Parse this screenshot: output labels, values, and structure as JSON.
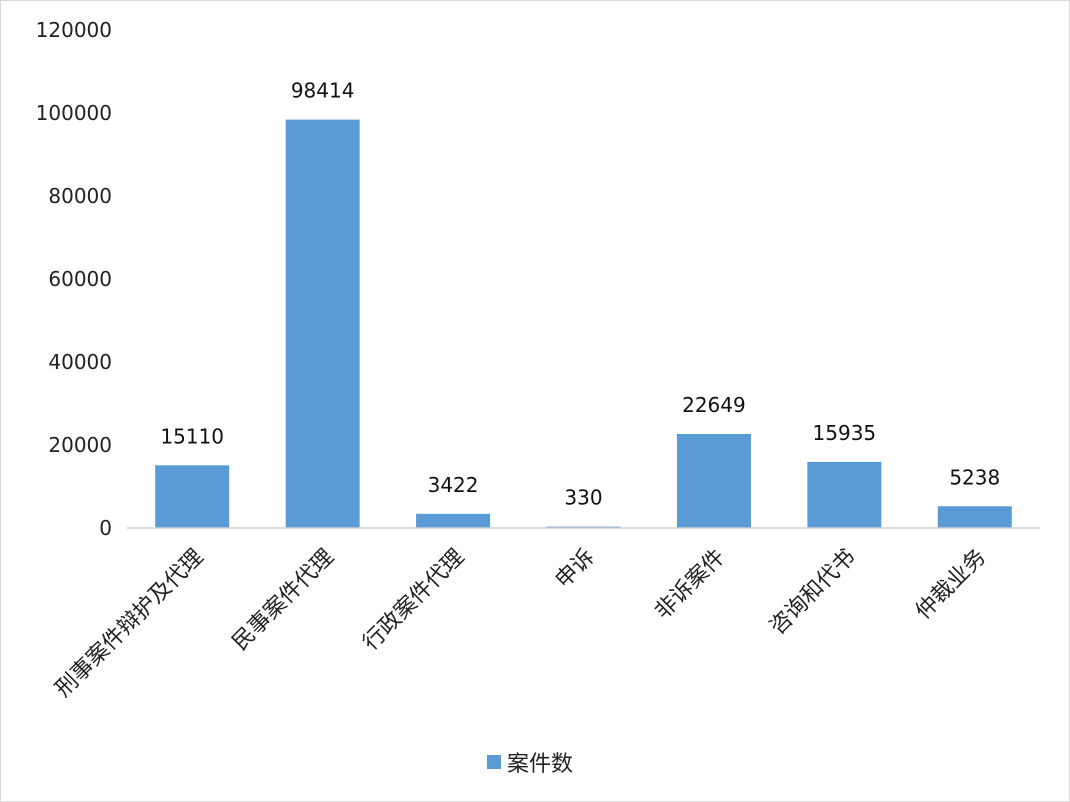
{
  "chart_data": {
    "type": "bar",
    "title": "",
    "xlabel": "",
    "ylabel": "",
    "ylim": [
      0,
      120000
    ],
    "yticks": [
      0,
      20000,
      40000,
      60000,
      80000,
      100000,
      120000
    ],
    "grid": false,
    "legend_position": "bottom",
    "categories": [
      "刑事案件辩护及代理",
      "民事案件代理",
      "行政案件代理",
      "申诉",
      "非诉案件",
      "咨询和代书",
      "仲裁业务"
    ],
    "series": [
      {
        "name": "案件数",
        "values": [
          15110,
          98414,
          3422,
          330,
          22649,
          15935,
          5238
        ],
        "color": "#5b9bd5"
      }
    ]
  }
}
